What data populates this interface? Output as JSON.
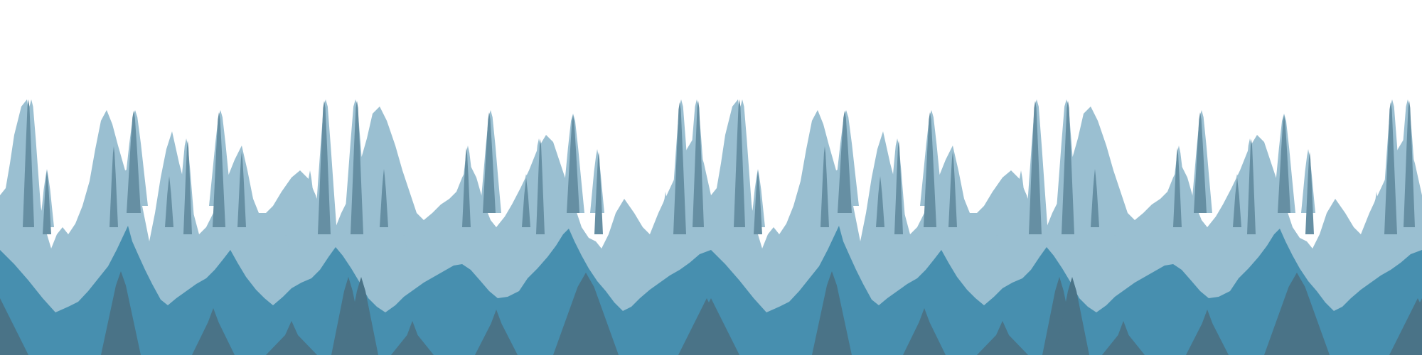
{
  "scene": {
    "background": "#ffffff",
    "layers": [
      {
        "name": "pale-spire-layer",
        "color": "#9abfd1"
      },
      {
        "name": "dark-spire-accents",
        "color": "#668fa3"
      },
      {
        "name": "mid-blue-hills",
        "color": "#478faf"
      },
      {
        "name": "dark-foreground-peaks",
        "color": "#4a7387"
      }
    ]
  }
}
